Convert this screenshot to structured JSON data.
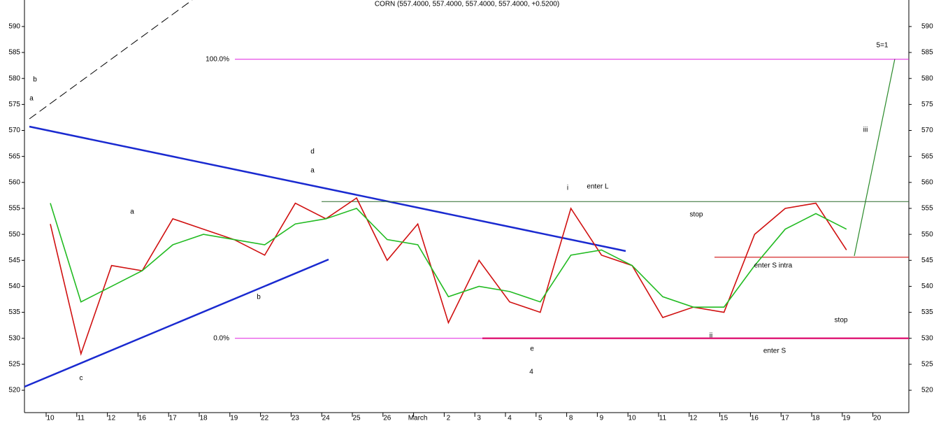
{
  "chart_data": {
    "type": "line",
    "title": "CORN (557.4000, 557.4000, 557.4000, 557.4000, +0.5200)",
    "categories": [
      "10",
      "11",
      "12",
      "16",
      "17",
      "18",
      "19",
      "22",
      "23",
      "24",
      "25",
      "26",
      "March",
      "2",
      "3",
      "4",
      "5",
      "8",
      "9",
      "10",
      "11",
      "12",
      "15",
      "16",
      "17",
      "18",
      "19",
      "20"
    ],
    "series": [
      {
        "color": "#d01010",
        "values": [
          552,
          527,
          544,
          543,
          553,
          551,
          549,
          546,
          556,
          553,
          557,
          545,
          552,
          533,
          545,
          537,
          535,
          555,
          546,
          544,
          534,
          536,
          535,
          550,
          555,
          556,
          547,
          null
        ]
      },
      {
        "color": "#22bb22",
        "values": [
          556,
          537,
          540,
          543,
          548,
          550,
          549,
          548,
          552,
          553,
          555,
          549,
          548,
          538,
          540,
          539,
          537,
          546,
          547,
          544,
          538,
          536,
          536,
          544,
          551,
          554,
          551,
          null
        ]
      }
    ],
    "ylim": [
      515.7,
      595.1
    ],
    "yticks": [
      520,
      525,
      530,
      535,
      540,
      545,
      550,
      555,
      560,
      565,
      570,
      575,
      580,
      585,
      590
    ],
    "levels": [
      {
        "label": "100.0%",
        "value": 583.7,
        "color": "#e020e0"
      },
      {
        "label": "0.0%",
        "value": 530,
        "color": "#e020e0"
      }
    ],
    "lines": [
      {
        "value": 556.3,
        "color": "#2a6a2a"
      },
      {
        "value": 545.6,
        "color": "#d01010"
      },
      {
        "value": 530,
        "color": "#e0207a"
      }
    ],
    "annotations": [
      {
        "text": "b",
        "color": "#1010c0"
      },
      {
        "text": "a",
        "color": "#d01010"
      },
      {
        "text": "d",
        "color": "#1010c0"
      },
      {
        "text": "a",
        "color": "#d01010"
      },
      {
        "text": "a",
        "color": "#d01010"
      },
      {
        "text": "b",
        "color": "#d01010"
      },
      {
        "text": "c",
        "color": "#1010c0"
      },
      {
        "text": "e",
        "color": "#1010c0"
      },
      {
        "text": "4",
        "color": "#e020e0"
      },
      {
        "text": "i",
        "color": "#1010c0"
      },
      {
        "text": "enter L",
        "color": "#2a6a2a"
      },
      {
        "text": "stop",
        "color": "#2a6a2a"
      },
      {
        "text": "enter S intra",
        "color": "#d01010"
      },
      {
        "text": "stop",
        "color": "#d01010"
      },
      {
        "text": "enter S",
        "color": "#d01010"
      },
      {
        "text": "ii",
        "color": "#1010c0"
      },
      {
        "text": "iii",
        "color": "#1010c0"
      },
      {
        "text": "5=1",
        "color": "#e020e0"
      }
    ]
  }
}
